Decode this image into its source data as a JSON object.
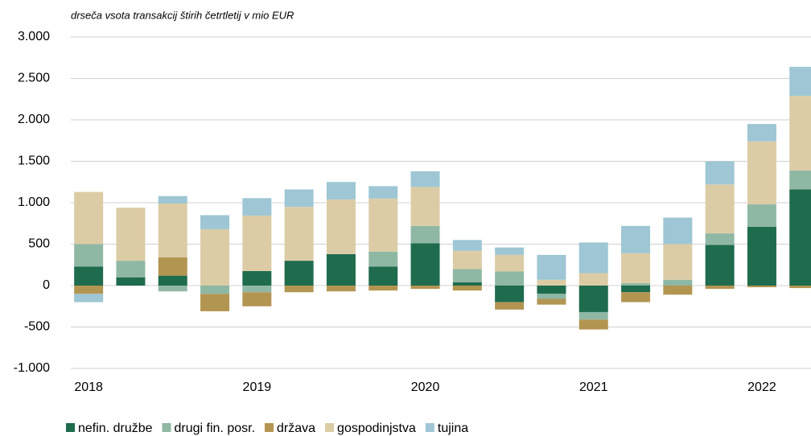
{
  "chart_data": {
    "type": "stacked_bar",
    "subtitle": "drseča vsota transakcij štirih četrtletij v mio EUR",
    "categories": [
      "2018",
      null,
      null,
      null,
      "2019",
      null,
      null,
      null,
      "2020",
      null,
      null,
      null,
      "2021",
      null,
      null,
      null,
      "2022",
      null
    ],
    "series": [
      {
        "name": "nefin. družbe",
        "color": "#1f6b4e",
        "values": [
          230,
          100,
          120,
          0,
          175,
          300,
          380,
          230,
          510,
          40,
          -200,
          -100,
          -320,
          -80,
          0,
          490,
          710,
          1160
        ]
      },
      {
        "name": "drugi fin. posr.",
        "color": "#8fb8a4",
        "values": [
          270,
          200,
          -70,
          -100,
          -80,
          0,
          0,
          180,
          210,
          160,
          170,
          -60,
          -90,
          30,
          70,
          140,
          270,
          230
        ]
      },
      {
        "name": "država",
        "color": "#b39552",
        "values": [
          -100,
          0,
          220,
          -210,
          -170,
          -80,
          -70,
          -60,
          -40,
          -60,
          -90,
          -70,
          -120,
          -120,
          -110,
          -40,
          -20,
          -30
        ]
      },
      {
        "name": "gospodinjstva",
        "color": "#dccca5",
        "values": [
          630,
          640,
          650,
          680,
          670,
          650,
          660,
          640,
          470,
          220,
          200,
          70,
          150,
          360,
          430,
          590,
          760,
          900
        ]
      },
      {
        "name": "tujina",
        "color": "#9ec6d4",
        "values": [
          -100,
          0,
          90,
          170,
          210,
          210,
          210,
          150,
          190,
          130,
          90,
          300,
          370,
          330,
          320,
          280,
          210,
          350
        ]
      }
    ],
    "ylim": [
      -1000,
      3000
    ],
    "yticks": [
      {
        "value": -1000,
        "label": "-1.000"
      },
      -500,
      0,
      500,
      {
        "value": 1000,
        "label": "1.000"
      },
      {
        "value": 1500,
        "label": "1.500"
      },
      {
        "value": 2000,
        "label": "2.000"
      },
      {
        "value": 2500,
        "label": "2.500"
      },
      {
        "value": 3000,
        "label": "3.000"
      }
    ],
    "grid": true
  }
}
